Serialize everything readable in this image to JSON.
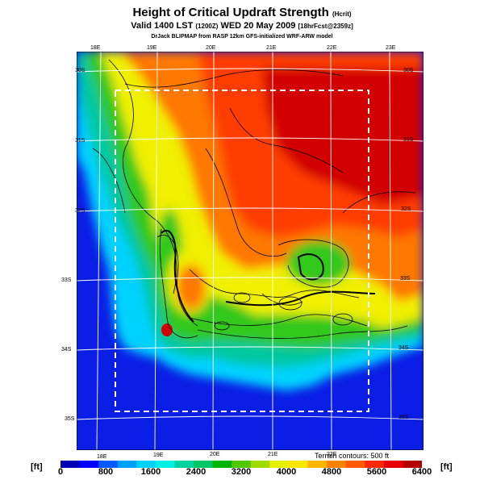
{
  "header": {
    "title": "Height of Critical Updraft Strength",
    "title_unit": "(Hcrit)",
    "valid_main": "Valid 1400 LST",
    "valid_z": "(1200Z)",
    "valid_date": "WED 20 May 2009",
    "forecast": "[18hrFcst@2359z]",
    "credit": "DrJack BLIPMAP from RASP 12km GFS-initialized WRF-ARW model"
  },
  "map": {
    "lon_labels_top": [
      "18E",
      "19E",
      "20E",
      "21E",
      "22E",
      "23E"
    ],
    "lon_labels_bottom": [
      "18E",
      "19E",
      "20E",
      "21E",
      "22E"
    ],
    "lat_labels_left": [
      "30S",
      "31S",
      "32S",
      "33S",
      "34S",
      "35S"
    ],
    "lat_labels_right": [
      "30S",
      "31S",
      "32S",
      "33S",
      "34S",
      "35S"
    ],
    "terrain_note": "Terrain contours: 500 ft",
    "colors": {
      "ocean": "#0a1ee6",
      "coast_cyan": "#00d2ff",
      "teal": "#00c8a0",
      "green": "#32c81e",
      "yellow": "#f0f000",
      "orange": "#ff7800",
      "red": "#ff3c00",
      "dark_red": "#d20000",
      "grid": "#ffffff",
      "contour": "#000000"
    }
  },
  "colorbar": {
    "unit_left": "[ft]",
    "unit_right": "[ft]",
    "labels": [
      "0",
      "800",
      "1600",
      "2400",
      "3200",
      "4000",
      "4800",
      "5600",
      "6400"
    ],
    "colors": [
      "#0000b4",
      "#0000ff",
      "#005aff",
      "#00a0ff",
      "#00d2ff",
      "#00f0e6",
      "#00d2a0",
      "#00c864",
      "#00b400",
      "#50c800",
      "#a0dc00",
      "#e6f000",
      "#ffe600",
      "#ffb400",
      "#ff8200",
      "#ff5a00",
      "#ff2800",
      "#e60000",
      "#b40000"
    ]
  }
}
